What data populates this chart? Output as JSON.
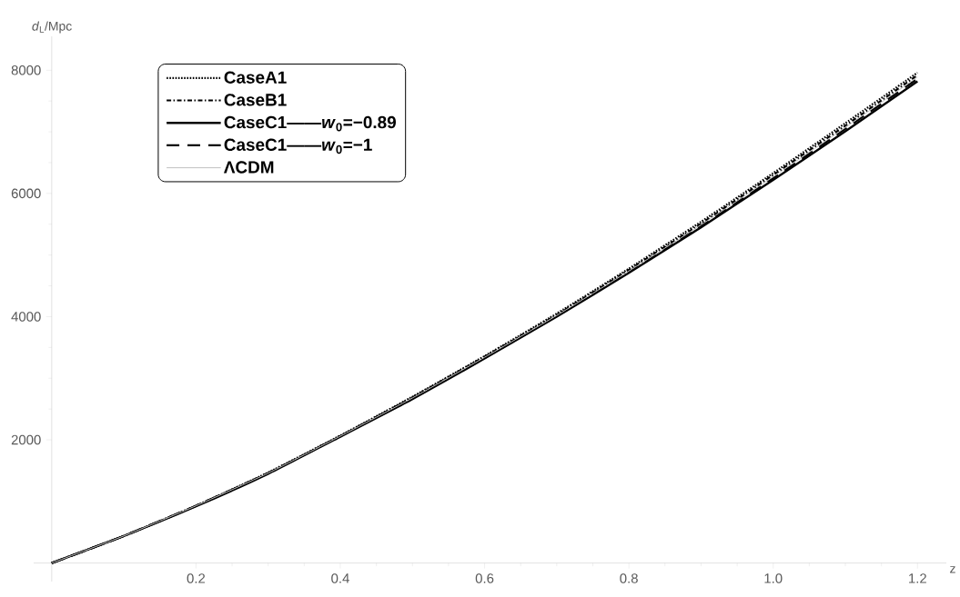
{
  "chart_data": {
    "type": "line",
    "xlabel": "z",
    "ylabel": "*d*$_{L}$/Mpc",
    "x": [
      0,
      0.1,
      0.2,
      0.3,
      0.4,
      0.5,
      0.6,
      0.7,
      0.8,
      0.9,
      1.0,
      1.1,
      1.2
    ],
    "xlim": [
      -0.025,
      1.24
    ],
    "ylim": [
      -300,
      8550
    ],
    "xticks": [
      0.2,
      0.4,
      0.6,
      0.8,
      {
        "value": 1.0,
        "label": "1.0"
      },
      1.2
    ],
    "yticks": [
      2000,
      4000,
      6000,
      8000
    ],
    "legend": "top left",
    "grid": false,
    "marker": "none",
    "series": [
      {
        "name": "CaseA1",
        "color": "#000000",
        "line_style": "dotted",
        "values": [
          0,
          440,
          930,
          1470,
          2070,
          2700,
          3360,
          4050,
          4780,
          5540,
          6330,
          7140,
          7960
        ]
      },
      {
        "name": "CaseB1",
        "color": "#000000",
        "line_style": "dashdot",
        "values": [
          0,
          440,
          930,
          1460,
          2060,
          2690,
          3350,
          4030,
          4760,
          5510,
          6300,
          7100,
          7920
        ]
      },
      {
        "name": "CaseC1——*w*$_{0}$=−0.89",
        "color": "#000000",
        "line_style": "solid",
        "values": [
          0,
          440,
          920,
          1450,
          2050,
          2660,
          3320,
          4000,
          4710,
          5450,
          6220,
          7010,
          7820
        ]
      },
      {
        "name": "CaseC1——*w*$_{0}$=−1",
        "color": "#000000",
        "line_style": "dashed",
        "values": [
          0,
          440,
          930,
          1460,
          2060,
          2680,
          3330,
          4010,
          4730,
          5480,
          6250,
          7050,
          7860
        ]
      },
      {
        "name": "ΛCDM",
        "color": "#c0c0c0",
        "line_style": "solid",
        "values": [
          0,
          440,
          930,
          1460,
          2060,
          2680,
          3340,
          4020,
          4740,
          5490,
          6270,
          7070,
          7890
        ]
      }
    ]
  }
}
